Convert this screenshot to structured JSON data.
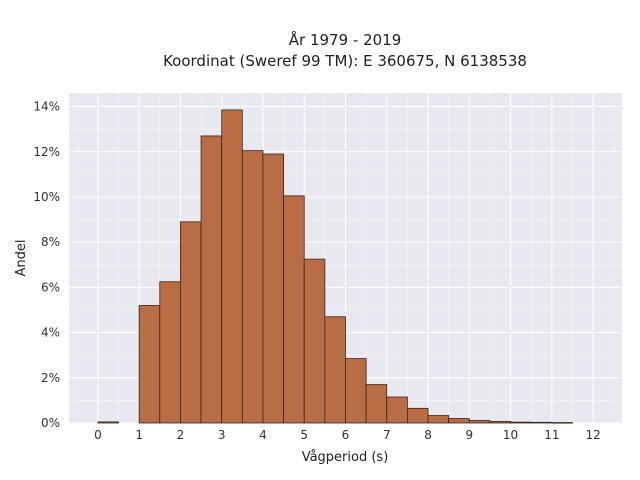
{
  "chart_data": {
    "type": "bar",
    "title": "År 1979 - 2019",
    "subtitle": "Koordinat (Sweref 99 TM): E 360675, N 6138538",
    "xlabel": "Vågperiod (s)",
    "ylabel": "Andel",
    "bin_width": 0.5,
    "xlim": [
      -0.7,
      12.7
    ],
    "ylim": [
      0,
      14.6
    ],
    "x_ticks": [
      0,
      1,
      2,
      3,
      4,
      5,
      6,
      7,
      8,
      9,
      10,
      11,
      12
    ],
    "x_tick_labels": [
      "0",
      "1",
      "2",
      "3",
      "4",
      "5",
      "6",
      "7",
      "8",
      "9",
      "10",
      "11",
      "12"
    ],
    "y_ticks": [
      0,
      2,
      4,
      6,
      8,
      10,
      12,
      14
    ],
    "y_tick_labels": [
      "0%",
      "2%",
      "4%",
      "6%",
      "8%",
      "10%",
      "12%",
      "14%"
    ],
    "grid": true,
    "colors": {
      "bar_fill": "#b86d45",
      "bar_edge": "#3d2418",
      "plot_background": "#e8e8f0",
      "grid": "#ffffff"
    },
    "bins": [
      {
        "x0": 0.0,
        "x1": 0.5,
        "y": 0.05
      },
      {
        "x0": 1.0,
        "x1": 1.5,
        "y": 5.2
      },
      {
        "x0": 1.5,
        "x1": 2.0,
        "y": 6.25
      },
      {
        "x0": 2.0,
        "x1": 2.5,
        "y": 8.9
      },
      {
        "x0": 2.5,
        "x1": 3.0,
        "y": 12.7
      },
      {
        "x0": 3.0,
        "x1": 3.5,
        "y": 13.85
      },
      {
        "x0": 3.5,
        "x1": 4.0,
        "y": 12.05
      },
      {
        "x0": 4.0,
        "x1": 4.5,
        "y": 11.9
      },
      {
        "x0": 4.5,
        "x1": 5.0,
        "y": 10.05
      },
      {
        "x0": 5.0,
        "x1": 5.5,
        "y": 7.25
      },
      {
        "x0": 5.5,
        "x1": 6.0,
        "y": 4.7
      },
      {
        "x0": 6.0,
        "x1": 6.5,
        "y": 2.85
      },
      {
        "x0": 6.5,
        "x1": 7.0,
        "y": 1.7
      },
      {
        "x0": 7.0,
        "x1": 7.5,
        "y": 1.15
      },
      {
        "x0": 7.5,
        "x1": 8.0,
        "y": 0.65
      },
      {
        "x0": 8.0,
        "x1": 8.5,
        "y": 0.33
      },
      {
        "x0": 8.5,
        "x1": 9.0,
        "y": 0.2
      },
      {
        "x0": 9.0,
        "x1": 9.5,
        "y": 0.11
      },
      {
        "x0": 9.5,
        "x1": 10.0,
        "y": 0.07
      },
      {
        "x0": 10.0,
        "x1": 10.5,
        "y": 0.04
      },
      {
        "x0": 10.5,
        "x1": 11.0,
        "y": 0.03
      },
      {
        "x0": 11.0,
        "x1": 11.5,
        "y": 0.02
      }
    ]
  }
}
